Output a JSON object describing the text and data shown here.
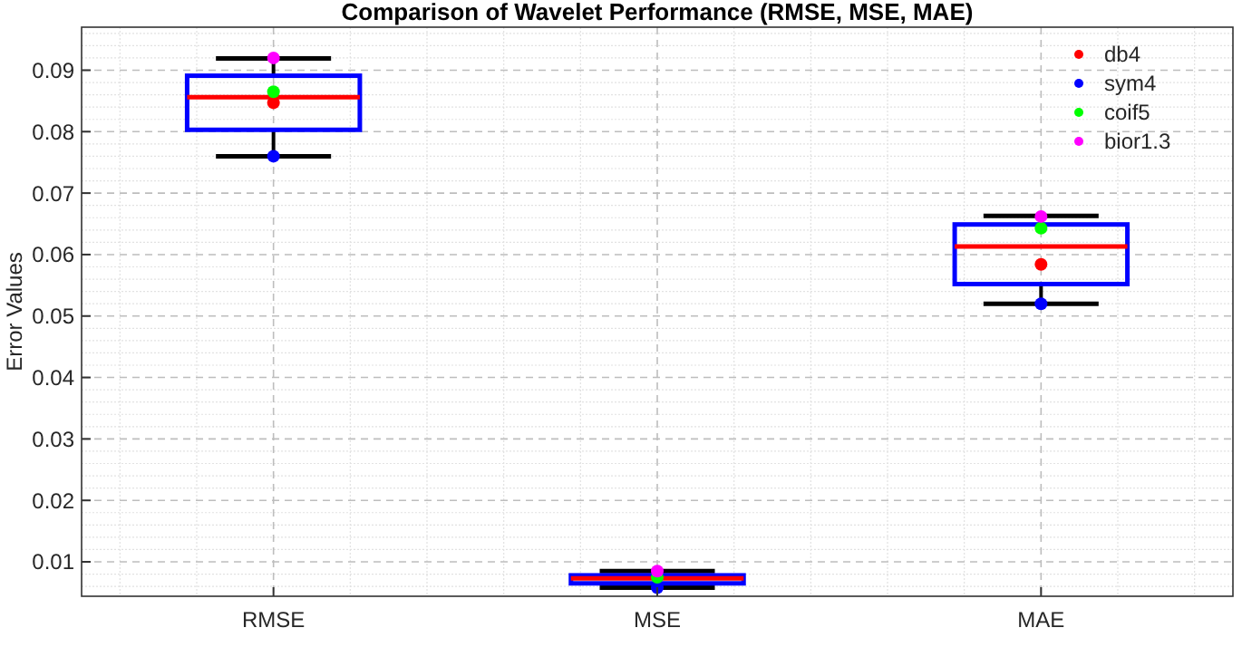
{
  "chart_data": {
    "type": "box",
    "title": "Comparison of Wavelet Performance (RMSE, MSE, MAE)",
    "ylabel": "Error Values",
    "categories": [
      "RMSE",
      "MSE",
      "MAE"
    ],
    "ylim": [
      0.0044,
      0.097
    ],
    "yticks": [
      0.01,
      0.02,
      0.03,
      0.04,
      0.05,
      0.06,
      0.07,
      0.08,
      0.09
    ],
    "grid": true,
    "legend": "top right",
    "marker": "circle",
    "series": [
      {
        "color": "#0000ff",
        "boxes": [
          {
            "low": 0.076,
            "q1": 0.0803,
            "median": 0.0856,
            "q3": 0.0891,
            "high": 0.0919
          },
          {
            "low": 0.0058,
            "q1": 0.0065,
            "median": 0.0073,
            "q3": 0.0078,
            "high": 0.0085
          },
          {
            "low": 0.052,
            "q1": 0.0552,
            "median": 0.0613,
            "q3": 0.0649,
            "high": 0.0663
          }
        ]
      },
      {
        "type": "scatter",
        "name": "db4",
        "color": "#ff0000",
        "x": [
          "RMSE",
          "MSE",
          "MAE"
        ],
        "values": [
          0.0847,
          null,
          0.0584
        ]
      },
      {
        "type": "scatter",
        "name": "sym4",
        "color": "#0000ff",
        "x": [
          "RMSE",
          "MSE",
          "MAE"
        ],
        "values": [
          0.076,
          0.0058,
          0.052
        ]
      },
      {
        "type": "scatter",
        "name": "coif5",
        "color": "#00ff00",
        "x": [
          "RMSE",
          "MSE",
          "MAE"
        ],
        "values": [
          0.0865,
          0.0075,
          0.0643
        ]
      },
      {
        "type": "scatter",
        "name": "bior1.3",
        "color": "#ff00ff",
        "x": [
          "RMSE",
          "MSE",
          "MAE"
        ],
        "values": [
          0.092,
          0.0085,
          0.0662
        ]
      }
    ]
  }
}
